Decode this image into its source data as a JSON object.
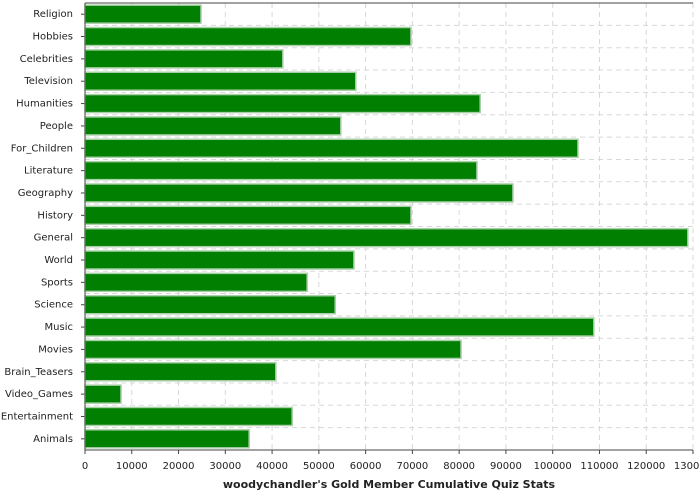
{
  "chart_data": {
    "type": "barh",
    "x_label": "woodychandler's Gold Member Cumulative Quiz Stats",
    "categories": [
      "Religion",
      "Hobbies",
      "Celebrities",
      "Television",
      "Humanities",
      "People",
      "For_Children",
      "Literature",
      "Geography",
      "History",
      "General",
      "World",
      "Sports",
      "Science",
      "Music",
      "Movies",
      "Brain_Teasers",
      "Video_Games",
      "Entertainment",
      "Animals"
    ],
    "values": [
      24800,
      69700,
      42300,
      57900,
      84500,
      54700,
      105400,
      83800,
      91500,
      69700,
      128900,
      57500,
      47500,
      53500,
      108800,
      80400,
      40800,
      7700,
      44300,
      35100
    ],
    "color": "#007f00",
    "xlim": [
      0,
      130000
    ],
    "xticks": [
      0,
      10000,
      20000,
      30000,
      40000,
      50000,
      60000,
      70000,
      80000,
      90000,
      100000,
      110000,
      120000,
      130000
    ],
    "grid": true
  }
}
